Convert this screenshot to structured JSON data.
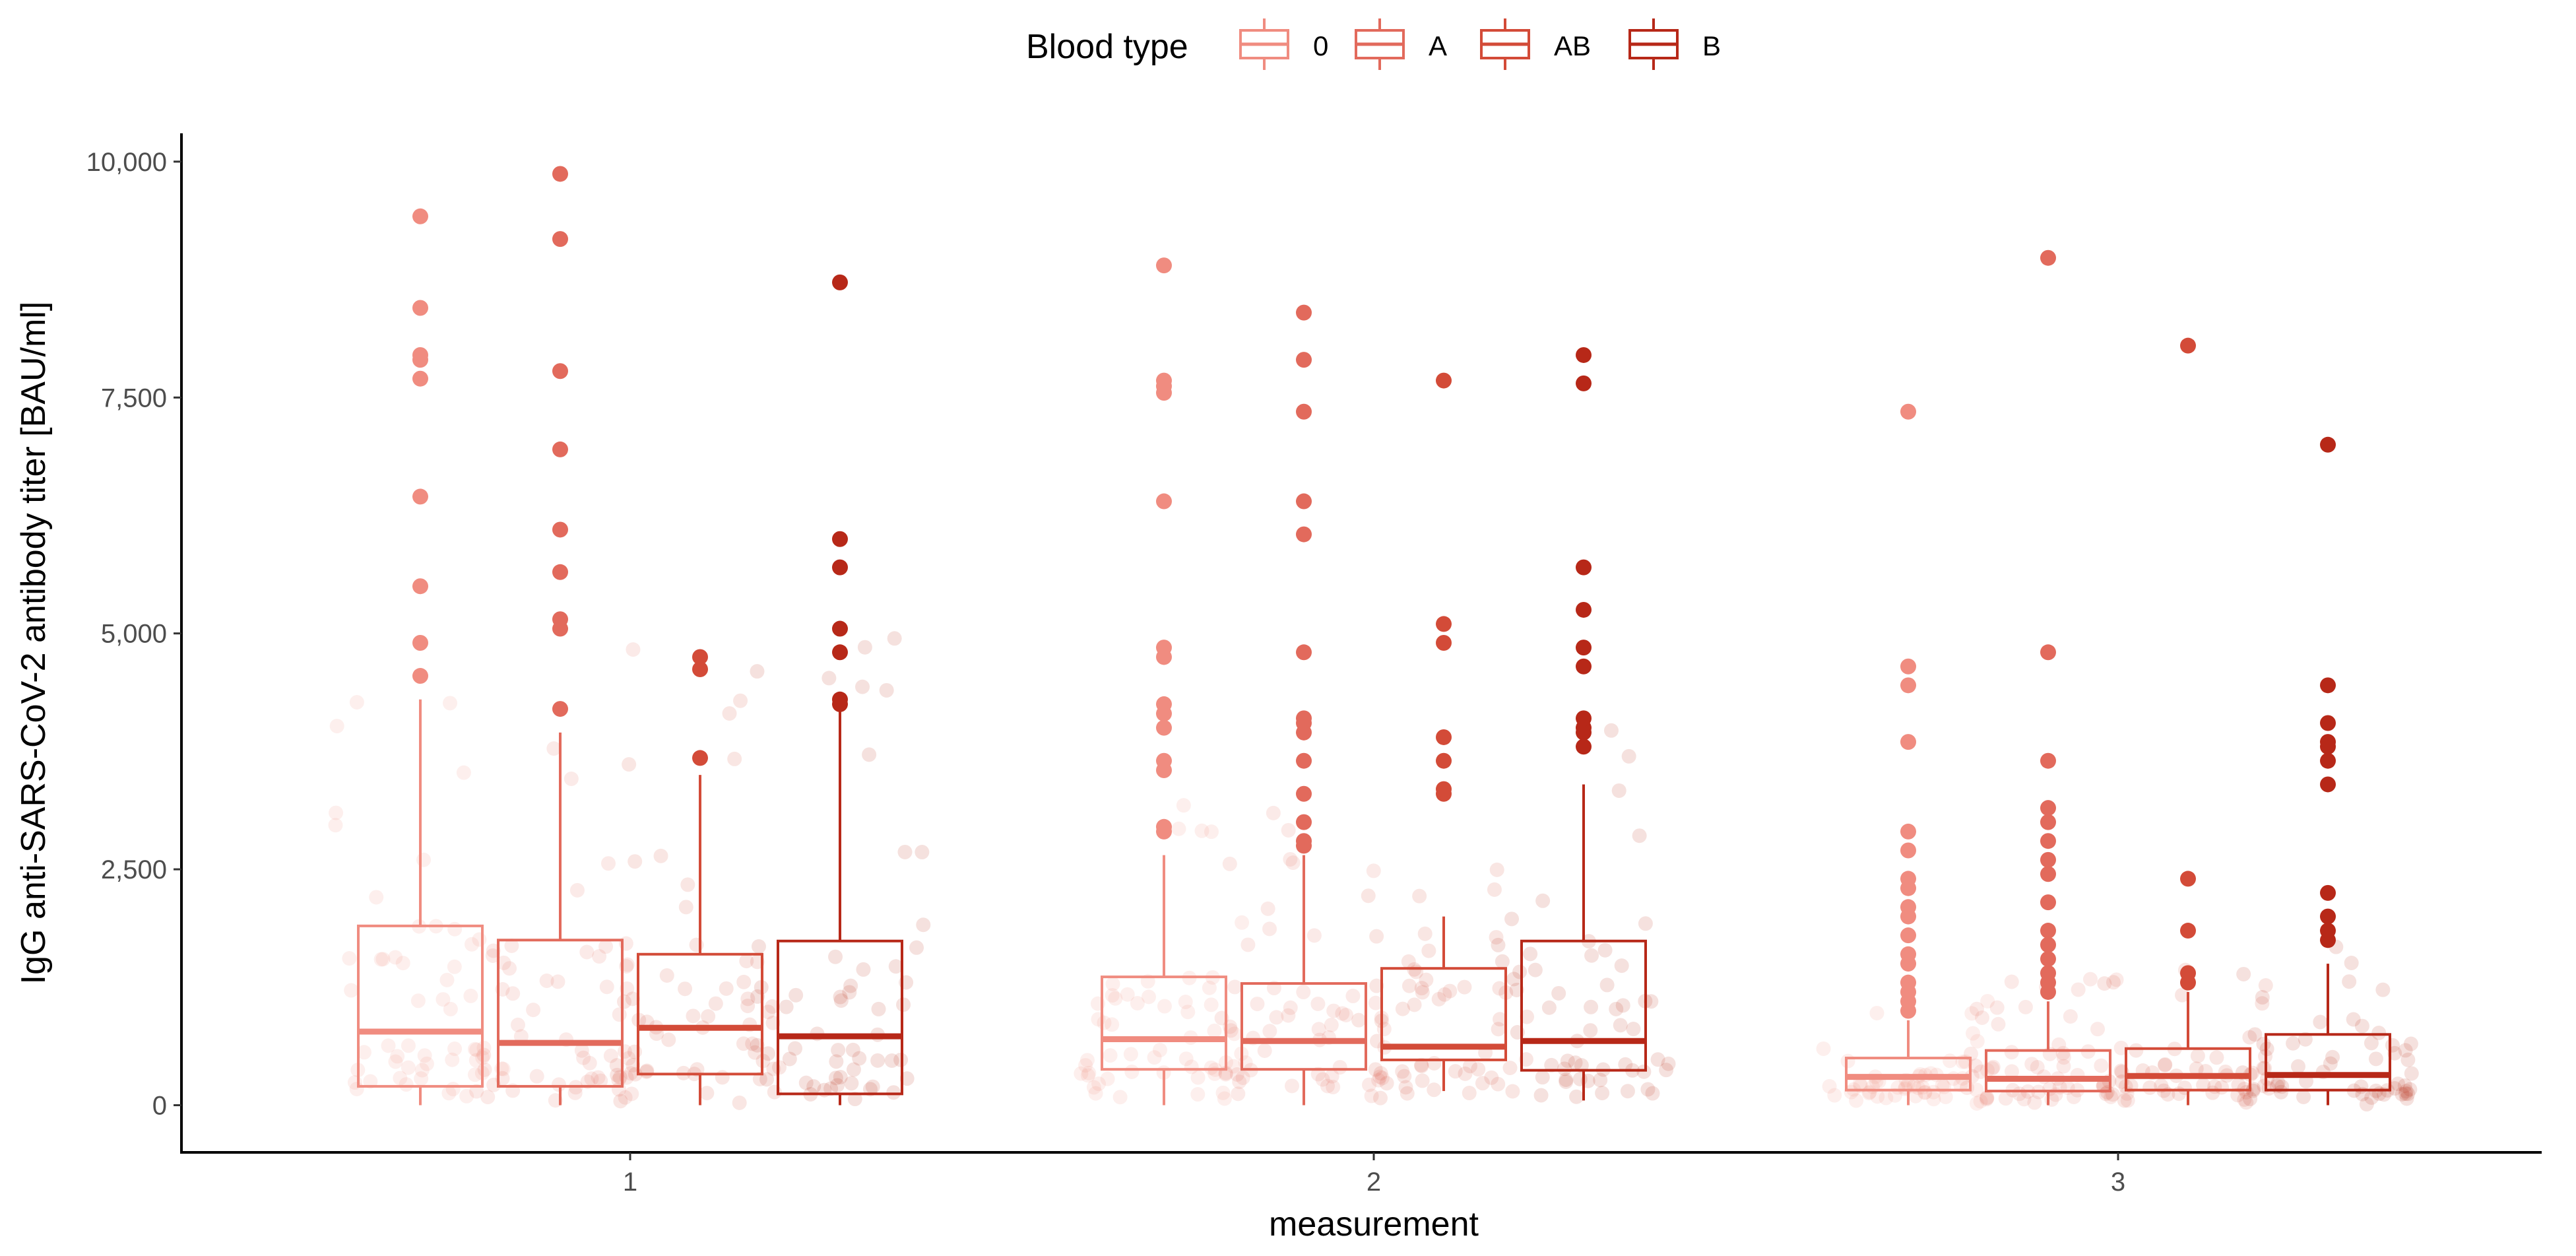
{
  "chart_data": {
    "type": "boxplot",
    "title": "",
    "xlabel": "measurement",
    "ylabel": "IgG anti-SARS-CoV-2 antibody titer [BAU/ml]",
    "ylim": [
      -500,
      10300
    ],
    "yticks": [
      0,
      2500,
      5000,
      7500,
      10000
    ],
    "ytick_labels": [
      "0",
      "2,500",
      "5,000",
      "7,500",
      "10,000"
    ],
    "categories": [
      "1",
      "2",
      "3"
    ],
    "legend": {
      "title": "Blood type",
      "position": "top"
    },
    "series": [
      {
        "name": "0",
        "color": "#F08C80",
        "boxes": [
          {
            "q1": 200,
            "median": 780,
            "q3": 1900,
            "whisker_low": 0,
            "whisker_high": 4300,
            "outliers": [
              4550,
              4900,
              5500,
              6450,
              7700,
              7900,
              7950,
              8450,
              9420
            ]
          },
          {
            "q1": 380,
            "median": 700,
            "q3": 1360,
            "whisker_low": 0,
            "whisker_high": 2650,
            "outliers": [
              2900,
              2950,
              3550,
              3650,
              4000,
              4150,
              4250,
              4750,
              4850,
              6400,
              7550,
              7620,
              7680,
              8900
            ]
          },
          {
            "q1": 160,
            "median": 300,
            "q3": 500,
            "whisker_low": 0,
            "whisker_high": 900,
            "outliers": [
              1000,
              1100,
              1200,
              1300,
              1500,
              1600,
              1800,
              2000,
              2100,
              2300,
              2400,
              2700,
              2900,
              3850,
              4450,
              4650,
              7350
            ]
          }
        ]
      },
      {
        "name": "A",
        "color": "#E26A5C",
        "boxes": [
          {
            "q1": 200,
            "median": 660,
            "q3": 1750,
            "whisker_low": 0,
            "whisker_high": 3950,
            "outliers": [
              4200,
              5050,
              5150,
              5650,
              6100,
              6950,
              7780,
              9180,
              9870
            ]
          },
          {
            "q1": 380,
            "median": 680,
            "q3": 1290,
            "whisker_low": 0,
            "whisker_high": 2650,
            "outliers": [
              2750,
              2800,
              3000,
              3300,
              3650,
              3950,
              4050,
              4100,
              4800,
              6050,
              6400,
              7350,
              7900,
              8400
            ]
          },
          {
            "q1": 150,
            "median": 280,
            "q3": 580,
            "whisker_low": 0,
            "whisker_high": 1100,
            "outliers": [
              1200,
              1300,
              1400,
              1550,
              1700,
              1850,
              2150,
              2450,
              2600,
              2800,
              3000,
              3150,
              3650,
              4800,
              8980
            ]
          }
        ]
      },
      {
        "name": "AB",
        "color": "#D34B38",
        "boxes": [
          {
            "q1": 330,
            "median": 820,
            "q3": 1600,
            "whisker_low": 0,
            "whisker_high": 3500,
            "outliers": [
              3680,
              4620,
              4750
            ]
          },
          {
            "q1": 480,
            "median": 620,
            "q3": 1450,
            "whisker_low": 150,
            "whisker_high": 2000,
            "outliers": [
              3300,
              3350,
              3650,
              3900,
              4900,
              5100,
              7680
            ]
          },
          {
            "q1": 160,
            "median": 310,
            "q3": 600,
            "whisker_low": 0,
            "whisker_high": 1200,
            "outliers": [
              1300,
              1400,
              1850,
              2400,
              8050
            ]
          }
        ]
      },
      {
        "name": "B",
        "color": "#B72818",
        "boxes": [
          {
            "q1": 120,
            "median": 730,
            "q3": 1740,
            "whisker_low": 0,
            "whisker_high": 4200,
            "outliers": [
              4250,
              4300,
              4800,
              5050,
              5700,
              6000,
              8720
            ]
          },
          {
            "q1": 370,
            "median": 680,
            "q3": 1740,
            "whisker_low": 50,
            "whisker_high": 3400,
            "outliers": [
              3800,
              3950,
              4000,
              4100,
              4650,
              4850,
              5250,
              5700,
              7650,
              7950
            ]
          },
          {
            "q1": 160,
            "median": 320,
            "q3": 750,
            "whisker_low": 0,
            "whisker_high": 1500,
            "outliers": [
              1750,
              1850,
              2000,
              2250,
              3400,
              3650,
              3800,
              3850,
              4050,
              4450,
              7000
            ]
          }
        ]
      }
    ]
  }
}
